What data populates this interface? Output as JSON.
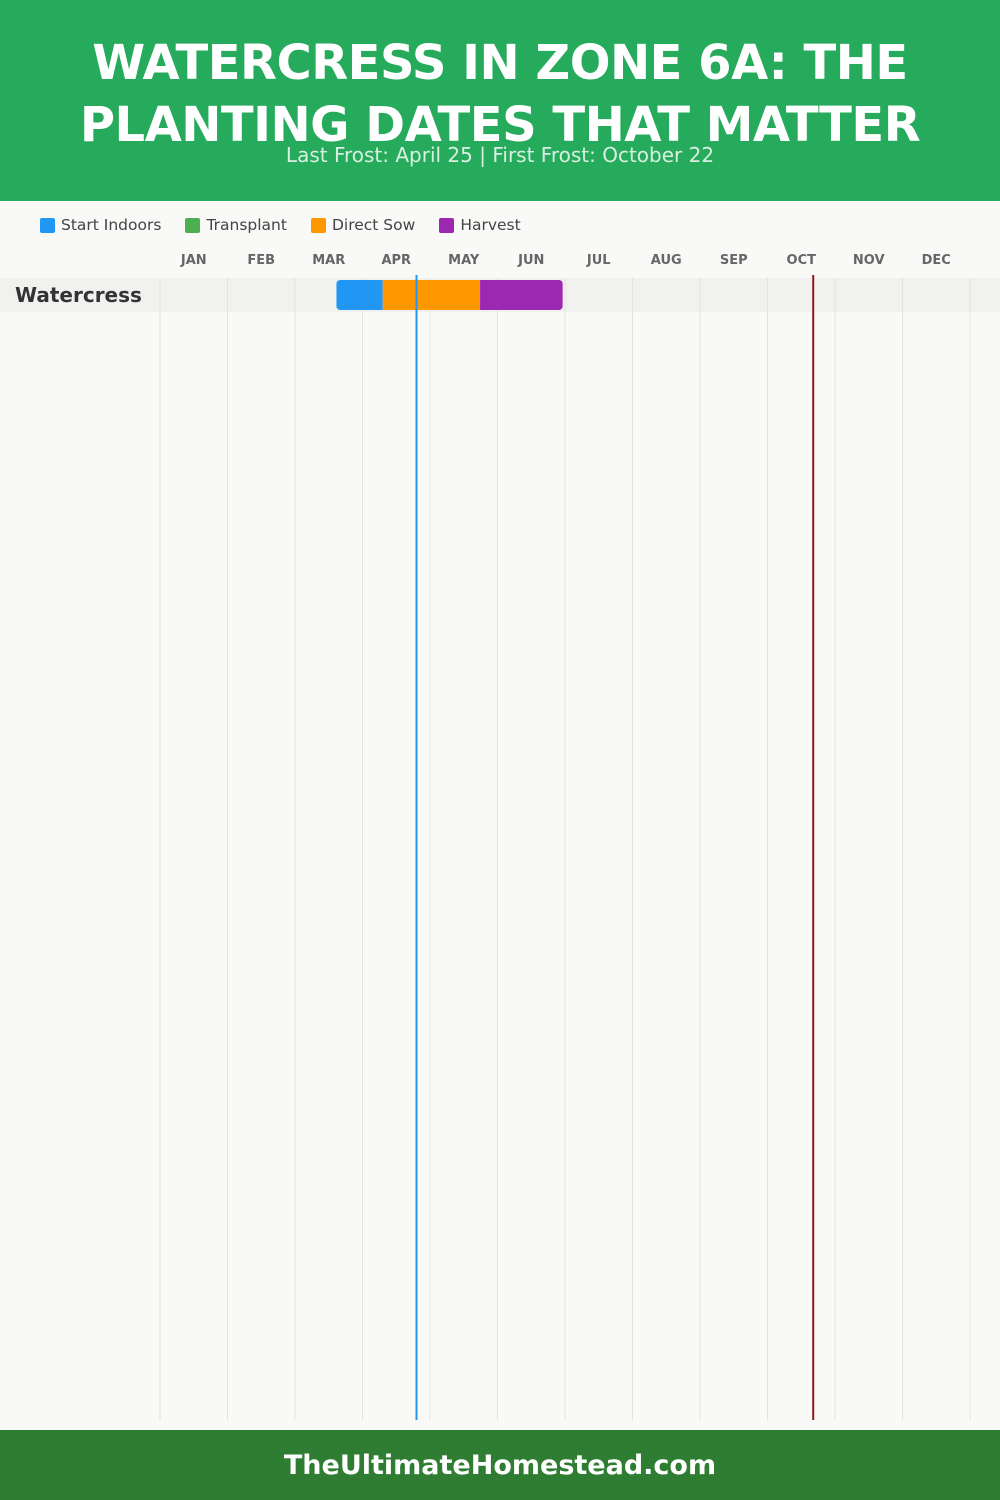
{
  "header": {
    "title_line1": "WATERCRESS IN ZONE 6A: THE",
    "title_line2": "PLANTING DATES THAT MATTER",
    "subtitle": "Last Frost: April 25 | First Frost: October 22"
  },
  "colors": {
    "header_bg": "#26ab5c",
    "footer_bg": "#2e7d32",
    "start_indoors": "#2196f3",
    "transplant": "#4caf50",
    "direct_sow": "#ff9800",
    "harvest": "#9c27b0",
    "last_frost_line": "#2196f3",
    "first_frost_line": "#8b1a1a"
  },
  "legend": [
    {
      "key": "start_indoors",
      "label": "Start Indoors",
      "color": "#2196f3"
    },
    {
      "key": "transplant",
      "label": "Transplant",
      "color": "#4caf50"
    },
    {
      "key": "direct_sow",
      "label": "Direct Sow",
      "color": "#ff9800"
    },
    {
      "key": "harvest",
      "label": "Harvest",
      "color": "#9c27b0"
    }
  ],
  "chart_data": {
    "type": "gantt",
    "months": [
      "JAN",
      "FEB",
      "MAR",
      "APR",
      "MAY",
      "JUN",
      "JUL",
      "AUG",
      "SEP",
      "OCT",
      "NOV",
      "DEC"
    ],
    "crops": [
      {
        "name": "Watercress",
        "segments": [
          {
            "phase": "start_indoors",
            "start": "Mar 20",
            "end": "Apr 10"
          },
          {
            "phase": "direct_sow",
            "start": "Apr 10",
            "end": "May 24"
          },
          {
            "phase": "harvest",
            "start": "May 24",
            "end": "Jun 30"
          }
        ]
      }
    ],
    "frost_markers": [
      {
        "name": "Last Frost",
        "date": "Apr 25",
        "color": "#2196f3"
      },
      {
        "name": "First Frost",
        "date": "Oct 22",
        "color": "#8b1a1a"
      }
    ],
    "grid": true
  },
  "footer": {
    "site": "TheUltimateHomestead.com"
  }
}
